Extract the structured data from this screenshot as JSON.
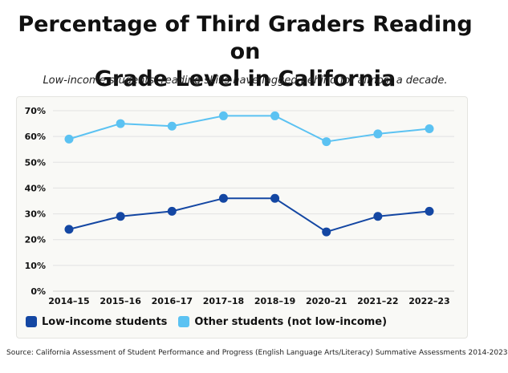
{
  "chart_data": {
    "type": "line",
    "title": "Percentage of Third Graders Reading on Grade Level in California",
    "title_lines": [
      "Percentage of Third Graders Reading on",
      "Grade Level in California"
    ],
    "subtitle": "Low-income students’ reading skills have lagged behind for almost a decade.",
    "categories": [
      "2014–15",
      "2015–16",
      "2016–17",
      "2017–18",
      "2018–19",
      "2020–21",
      "2021–22",
      "2022–23"
    ],
    "y_ticks": [
      "0%",
      "10%",
      "20%",
      "30%",
      "40%",
      "50%",
      "60%",
      "70%"
    ],
    "ylim": [
      0,
      70
    ],
    "grid": true,
    "legend_position": "bottom-left",
    "series": [
      {
        "name": "Low-income students",
        "color": "#1447a3",
        "values": [
          24,
          29,
          31,
          36,
          36,
          23,
          29,
          31
        ]
      },
      {
        "name": "Other students (not low-income)",
        "color": "#5bc2f2",
        "values": [
          59,
          65,
          64,
          68,
          68,
          58,
          61,
          63
        ]
      }
    ],
    "source": "Source: California Assessment of Student Performance and Progress (English Language Arts/Literacy) Summative Assessments 2014-2023"
  }
}
